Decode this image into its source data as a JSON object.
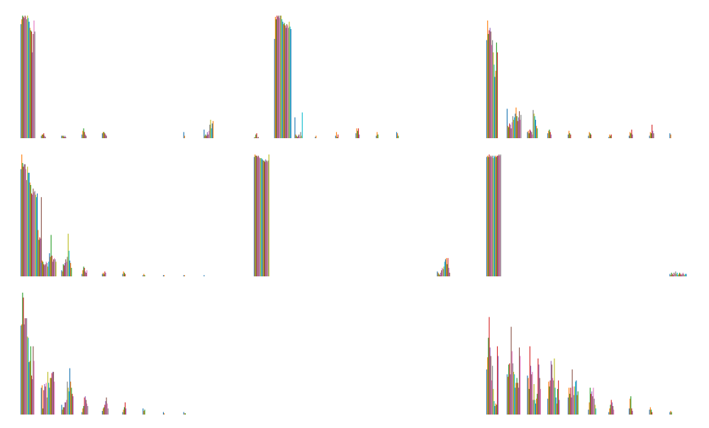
{
  "palette": [
    "#1f77b4",
    "#ff7f0e",
    "#2ca02c",
    "#d62728",
    "#9467bd",
    "#8c564b",
    "#e377c2",
    "#7f7f7f",
    "#bcbd22",
    "#17becf"
  ],
  "chart_data": [
    {
      "type": "bar",
      "position": "row-1-col-1",
      "axes_visible": false,
      "grid": false,
      "ylim": [
        0,
        1
      ],
      "groups": [
        {
          "label": "",
          "values": [
            0.93,
            0.97,
            1.0,
            0.99,
            0.98,
            1.0,
            0.99,
            0.97,
            1.0,
            0.98,
            0.95,
            0.9,
            0.88,
            0.87,
            0.7,
            0.85,
            0.96,
            0.87
          ]
        },
        {
          "label": "",
          "values": [
            0.02,
            0.03,
            0.03,
            0.04,
            0.02,
            0.01
          ]
        },
        {
          "label": "",
          "values": [
            0.02,
            0.02,
            0.02,
            0.01,
            0.02,
            0.01
          ]
        },
        {
          "label": "",
          "values": [
            0.03,
            0.06,
            0.08,
            0.05,
            0.03,
            0.02
          ]
        },
        {
          "label": "",
          "values": [
            0.04,
            0.05,
            0.05,
            0.04,
            0.03,
            0.02
          ]
        },
        {
          "label": "",
          "values": []
        },
        {
          "label": "",
          "values": []
        },
        {
          "label": "",
          "values": []
        },
        {
          "label": "",
          "values": [
            0.05,
            0.02
          ]
        },
        {
          "label": "",
          "values": [
            0.07,
            0.02,
            0.03,
            0.02,
            0.05,
            0.03,
            0.06,
            0.11,
            0.15,
            0.08,
            0.12,
            0.14
          ]
        }
      ]
    },
    {
      "type": "bar",
      "position": "row-1-col-2",
      "axes_visible": false,
      "grid": false,
      "ylim": [
        0,
        1
      ],
      "groups": [
        {
          "label": "",
          "values": [
            0.005,
            0.01,
            0.03,
            0.04,
            0.005,
            0.01
          ]
        },
        {
          "label": "",
          "values": [
            0.81,
            0.99,
            0.97,
            1.0,
            0.99,
            1.0,
            0.98,
            1.0,
            1.0,
            0.97,
            0.95,
            0.93,
            0.94,
            0.92,
            0.9,
            0.93,
            0.92,
            0.9,
            0.95,
            0.91,
            0.89
          ]
        },
        {
          "label": "",
          "values": [
            0.17,
            0.03,
            0.02,
            0.01,
            0.02,
            0.03,
            0.01,
            0.05,
            0.02,
            0.21
          ]
        },
        {
          "label": "",
          "values": [
            0.01,
            0.02
          ]
        },
        {
          "label": "",
          "values": [
            0.02,
            0.05,
            0.01,
            0.03
          ]
        },
        {
          "label": "",
          "values": [
            0.04,
            0.08,
            0.06,
            0.08,
            0.03
          ]
        },
        {
          "label": "",
          "values": [
            0.02,
            0.05,
            0.03
          ]
        },
        {
          "label": "",
          "values": [
            0.05,
            0.04,
            0.02
          ]
        },
        {
          "label": "",
          "values": []
        },
        {
          "label": "",
          "values": []
        }
      ]
    },
    {
      "type": "bar",
      "position": "row-1-col-3",
      "axes_visible": false,
      "grid": false,
      "ylim": [
        0,
        1
      ],
      "groups": [
        {
          "label": "",
          "values": [
            0.8,
            0.96,
            0.85,
            0.88,
            0.9,
            0.87,
            0.76,
            0.8,
            0.7,
            0.6,
            0.5,
            0.55,
            0.78,
            0.7
          ]
        },
        {
          "label": "",
          "values": [
            0.24,
            0.1,
            0.09,
            0.12,
            0.11,
            0.08,
            0.13,
            0.18,
            0.15,
            0.17,
            0.2,
            0.25,
            0.18,
            0.14,
            0.17,
            0.22,
            0.15,
            0.19
          ]
        },
        {
          "label": "",
          "values": [
            0.05,
            0.06,
            0.04,
            0.07,
            0.06,
            0.05,
            0.03,
            0.23,
            0.2,
            0.18,
            0.15,
            0.1,
            0.08
          ]
        },
        {
          "label": "",
          "values": [
            0.04,
            0.06,
            0.07,
            0.05,
            0.03
          ]
        },
        {
          "label": "",
          "values": [
            0.03,
            0.06,
            0.04,
            0.03
          ]
        },
        {
          "label": "",
          "values": [
            0.02,
            0.05,
            0.04,
            0.03
          ]
        },
        {
          "label": "",
          "values": [
            0.01,
            0.03,
            0.02,
            0.03
          ]
        },
        {
          "label": "",
          "values": [
            0.02,
            0.05,
            0.04,
            0.07,
            0.03
          ]
        },
        {
          "label": "",
          "values": [
            0.02,
            0.05,
            0.04,
            0.11,
            0.06,
            0.04
          ]
        },
        {
          "label": "",
          "values": [
            0.04,
            0.03
          ]
        }
      ]
    },
    {
      "type": "bar",
      "position": "row-2-col-1",
      "axes_visible": false,
      "grid": false,
      "ylim": [
        0,
        1
      ],
      "groups": [
        {
          "label": "",
          "values": [
            0.88,
            1.0,
            0.93,
            0.9,
            0.92,
            0.92,
            0.88,
            0.79,
            0.9,
            0.85,
            0.85,
            0.77,
            0.75,
            0.68,
            0.67,
            0.72,
            0.69,
            0.7,
            0.67,
            0.65,
            0.68,
            0.38,
            0.3,
            0.32,
            0.31,
            0.65
          ]
        },
        {
          "label": "",
          "values": [
            0.11,
            0.13,
            0.12,
            0.1,
            0.09,
            0.1,
            0.12,
            0.11,
            0.08,
            0.12,
            0.19,
            0.16,
            0.34,
            0.17,
            0.12,
            0.14,
            0.15,
            0.14,
            0.12
          ]
        },
        {
          "label": "",
          "values": [
            0.05,
            0.04,
            0.1,
            0.09,
            0.11,
            0.14,
            0.12,
            0.16,
            0.35,
            0.21,
            0.13,
            0.11,
            0.07
          ]
        },
        {
          "label": "",
          "values": [
            0.02,
            0.05,
            0.08,
            0.07,
            0.04,
            0.03,
            0.05
          ]
        },
        {
          "label": "",
          "values": [
            0.02,
            0.03,
            0.02,
            0.04,
            0.03
          ]
        },
        {
          "label": "",
          "values": [
            0.02,
            0.04,
            0.03,
            0.02
          ]
        },
        {
          "label": "",
          "values": [
            0.01,
            0.02,
            0.01
          ]
        },
        {
          "label": "",
          "values": [
            0.01,
            0.01
          ]
        },
        {
          "label": "",
          "values": [
            0.01,
            0.01
          ]
        },
        {
          "label": "",
          "values": [
            0.01
          ]
        }
      ]
    },
    {
      "type": "bar",
      "position": "row-2-col-2",
      "axes_visible": false,
      "grid": false,
      "ylim": [
        0,
        1
      ],
      "groups": [
        {
          "label": "",
          "values": [
            0.98,
            1.0,
            0.99,
            0.99,
            0.98,
            0.99,
            0.98,
            0.97,
            0.97,
            0.97,
            0.96,
            0.95,
            0.95,
            0.94,
            0.96,
            0.95,
            0.94,
            0.95,
            1.0
          ]
        },
        {
          "label": "",
          "values": []
        },
        {
          "label": "",
          "values": []
        },
        {
          "label": "",
          "values": []
        },
        {
          "label": "",
          "values": []
        },
        {
          "label": "",
          "values": []
        },
        {
          "label": "",
          "values": []
        },
        {
          "label": "",
          "values": []
        },
        {
          "label": "",
          "values": []
        },
        {
          "label": "",
          "values": [
            0.04,
            0.03,
            0.02,
            0.01,
            0.03,
            0.05,
            0.07,
            0.06,
            0.08,
            0.12,
            0.14,
            0.15,
            0.1,
            0.15,
            0.07,
            0.03
          ]
        }
      ]
    },
    {
      "type": "bar",
      "position": "row-2-col-3",
      "axes_visible": false,
      "grid": false,
      "ylim": [
        0,
        1
      ],
      "groups": [
        {
          "label": "",
          "values": [
            0.98,
            0.99,
            0.98,
            1.0,
            0.98,
            0.99,
            0.98,
            0.99,
            0.97,
            0.99,
            0.98,
            0.99,
            0.98,
            0.99,
            0.99,
            1.0,
            0.99,
            1.0
          ]
        },
        {
          "label": "",
          "values": []
        },
        {
          "label": "",
          "values": []
        },
        {
          "label": "",
          "values": []
        },
        {
          "label": "",
          "values": []
        },
        {
          "label": "",
          "values": []
        },
        {
          "label": "",
          "values": []
        },
        {
          "label": "",
          "values": []
        },
        {
          "label": "",
          "values": []
        },
        {
          "label": "",
          "values": [
            0.02,
            0.01,
            0.03,
            0.02,
            0.01,
            0.03,
            0.02,
            0.04,
            0.02,
            0.03,
            0.01,
            0.02,
            0.03,
            0.02,
            0.01,
            0.02,
            0.03,
            0.02,
            0.01,
            0.02,
            0.02
          ]
        }
      ]
    },
    {
      "type": "bar",
      "position": "row-3-col-1",
      "axes_visible": false,
      "grid": false,
      "ylim": [
        0,
        1
      ],
      "groups": [
        {
          "label": "",
          "values": [
            0.73,
            0.74,
            1.0,
            0.96,
            0.74,
            0.79,
            0.79,
            0.79,
            0.64,
            0.63,
            0.43,
            0.44,
            0.56,
            0.32,
            0.29,
            0.56,
            0.44
          ]
        },
        {
          "label": "",
          "values": [
            0.22,
            0.24,
            0.05,
            0.2,
            0.25,
            0.23,
            0.26,
            0.14,
            0.35,
            0.26,
            0.22,
            0.3,
            0.3,
            0.34,
            0.35,
            0.35,
            0.27
          ]
        },
        {
          "label": "",
          "values": [
            0.08,
            0.04,
            0.06,
            0.06,
            0.1,
            0.1,
            0.12,
            0.27,
            0.22,
            0.19,
            0.38,
            0.27,
            0.22,
            0.17,
            0.15
          ]
        },
        {
          "label": "",
          "values": [
            0.02,
            0.05,
            0.07,
            0.14,
            0.15,
            0.12,
            0.09,
            0.07
          ]
        },
        {
          "label": "",
          "values": [
            0.03,
            0.05,
            0.06,
            0.08,
            0.11,
            0.14,
            0.09,
            0.05
          ]
        },
        {
          "label": "",
          "values": [
            0.02,
            0.04,
            0.06,
            0.1,
            0.05
          ]
        },
        {
          "label": "",
          "values": [
            0.05,
            0.03,
            0.04
          ]
        },
        {
          "label": "",
          "values": [
            0.02,
            0.01
          ]
        },
        {
          "label": "",
          "values": [
            0.02,
            0.01,
            0.01
          ]
        },
        {
          "label": "",
          "values": []
        }
      ]
    },
    {
      "type": "bar",
      "position": "row-3-col-2",
      "axes_visible": false,
      "grid": false,
      "empty": true,
      "groups": []
    },
    {
      "type": "bar",
      "position": "row-3-col-3",
      "axes_visible": false,
      "grid": false,
      "ylim": [
        0,
        1
      ],
      "groups": [
        {
          "label": "",
          "values": [
            0.37,
            0.47,
            0.63,
            0.8,
            0.55,
            0.48,
            0.28,
            0.4,
            0.21,
            0.11,
            0.07,
            0.09,
            0.08,
            0.56,
            0.48
          ]
        },
        {
          "label": "",
          "values": [
            0.33,
            0.31,
            0.41,
            0.42,
            0.33,
            0.72,
            0.52,
            0.42,
            0.35,
            0.33,
            0.22,
            0.26,
            0.3,
            0.26,
            0.22,
            0.55,
            0.48
          ]
        },
        {
          "label": "",
          "values": [
            0.32,
            0.3,
            0.21,
            0.56,
            0.4,
            0.33,
            0.35,
            0.12,
            0.25,
            0.12,
            0.09,
            0.13,
            0.17,
            0.46,
            0.41,
            0.3,
            0.21
          ]
        },
        {
          "label": "",
          "values": [
            0.13,
            0.27,
            0.23,
            0.28,
            0.44,
            0.41,
            0.3,
            0.28,
            0.46,
            0.22,
            0.14,
            0.09,
            0.21,
            0.28,
            0.12
          ]
        },
        {
          "label": "",
          "values": [
            0.14,
            0.22,
            0.17,
            0.22,
            0.14,
            0.37,
            0.23,
            0.16,
            0.23,
            0.27,
            0.28,
            0.16,
            0.19
          ]
        },
        {
          "label": "",
          "values": [
            0.04,
            0.1,
            0.22,
            0.17,
            0.19,
            0.15,
            0.22,
            0.13,
            0.08,
            0.05
          ]
        },
        {
          "label": "",
          "values": [
            0.02,
            0.05,
            0.08,
            0.12,
            0.1,
            0.07,
            0.04
          ]
        },
        {
          "label": "",
          "values": [
            0.05,
            0.13,
            0.15,
            0.05,
            0.03
          ]
        },
        {
          "label": "",
          "values": [
            0.04,
            0.06,
            0.04,
            0.02
          ]
        },
        {
          "label": "",
          "values": [
            0.02,
            0.03,
            0.02
          ]
        }
      ]
    }
  ]
}
